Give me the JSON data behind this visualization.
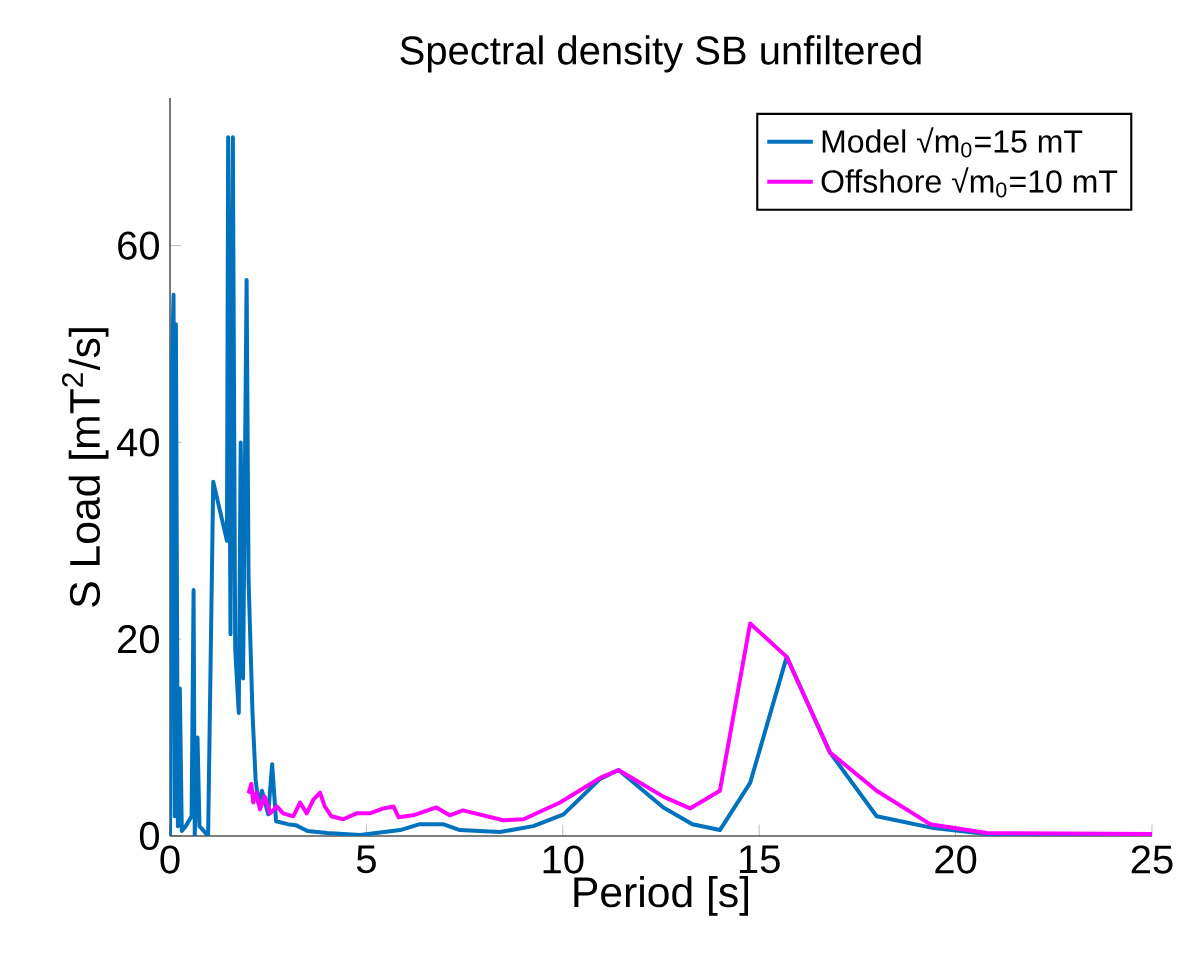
{
  "chart_data": {
    "type": "line",
    "title": "Spectral density SB unfiltered",
    "xlabel": "Period [s]",
    "ylabel": "S Load [mT$^{2}$/s]",
    "xlim": [
      0,
      25
    ],
    "ylim": [
      0,
      75
    ],
    "xticks": [
      0,
      5,
      10,
      15,
      20,
      25
    ],
    "yticks": [
      0,
      20,
      40,
      60
    ],
    "grid": false,
    "legend": "top right",
    "series": [
      {
        "name": "Model √m$_{0}$=15 mT",
        "color": "#0072bd",
        "x": [
          0.0,
          0.05,
          0.09,
          0.12,
          0.15,
          0.2,
          0.25,
          0.3,
          0.35,
          0.4,
          0.45,
          0.5,
          0.55,
          0.6,
          0.63,
          0.7,
          0.75,
          0.8,
          0.85,
          0.9,
          0.97,
          1.0,
          1.1,
          1.2,
          1.3,
          1.4,
          1.45,
          1.48,
          1.54,
          1.6,
          1.66,
          1.75,
          1.8,
          1.86,
          1.95,
          2.0,
          2.1,
          2.18,
          2.25,
          2.34,
          2.5,
          2.6,
          2.7,
          3.0,
          3.2,
          3.5,
          4.0,
          4.84,
          5.86,
          6.36,
          6.95,
          7.38,
          8.4,
          9.25,
          10.02,
          10.95,
          11.42,
          12.56,
          13.3,
          14.0,
          14.77,
          15.7,
          16.8,
          17.99,
          19.44,
          20.8,
          25.0
        ],
        "values": [
          0,
          48,
          55,
          2,
          52,
          1,
          15,
          0.5,
          null,
          1,
          null,
          null,
          2,
          25,
          0,
          10,
          1,
          null,
          null,
          null,
          0,
          null,
          36,
          null,
          null,
          null,
          30,
          71,
          20.5,
          71,
          19,
          12.5,
          40,
          16,
          56.5,
          26,
          12.5,
          5.7,
          3.3,
          4.6,
          2.2,
          7.3,
          1.5,
          1.2,
          1.1,
          0.5,
          0.3,
          0.1,
          0.6,
          1.2,
          1.2,
          0.6,
          0.4,
          1,
          2.2,
          5.8,
          6.7,
          2.9,
          1.2,
          0.6,
          5.4,
          18.2,
          8.5,
          2,
          0.8,
          0.2,
          0.2
        ]
      },
      {
        "name": "Offshore √m$_{0}$=10 mT",
        "color": "#ff00ff",
        "x": [
          2.0,
          2.07,
          2.12,
          2.2,
          2.29,
          2.41,
          2.55,
          2.72,
          2.88,
          3.14,
          3.31,
          3.48,
          3.65,
          3.82,
          3.94,
          4.11,
          4.41,
          4.75,
          5.09,
          5.43,
          5.69,
          5.82,
          6.19,
          6.78,
          7.12,
          7.46,
          8.48,
          9.0,
          9.93,
          10.95,
          11.42,
          12.56,
          13.24,
          14.0,
          14.77,
          15.7,
          16.8,
          17.99,
          19.35,
          20.8,
          25.0
        ],
        "values": [
          4.3,
          5.3,
          3.4,
          4.4,
          2.7,
          4,
          2.3,
          3,
          2.3,
          2,
          3.4,
          2.3,
          3.7,
          4.4,
          3,
          2,
          1.7,
          2.3,
          2.3,
          2.8,
          3,
          1.9,
          2.1,
          2.9,
          2.1,
          2.6,
          1.6,
          1.7,
          3.4,
          5.9,
          6.7,
          4,
          2.8,
          4.6,
          21.6,
          18.2,
          8.5,
          4.6,
          1.2,
          0.3,
          0.2
        ]
      }
    ]
  }
}
